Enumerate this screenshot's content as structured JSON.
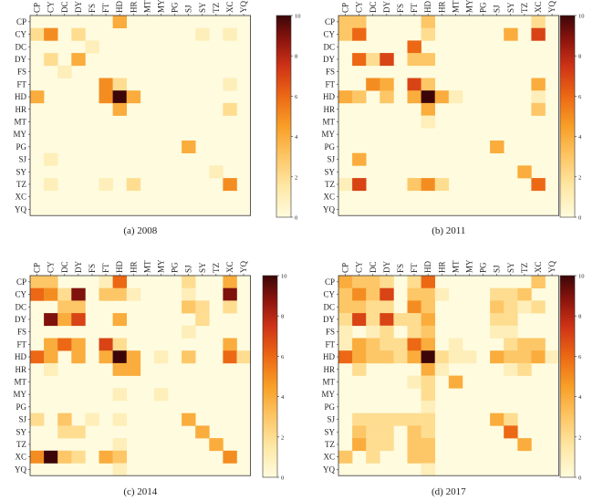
{
  "chart_data": [
    {
      "type": "heatmap",
      "caption": "(a) 2008",
      "labels": [
        "CP",
        "CY",
        "DC",
        "DY",
        "FS",
        "FT",
        "HD",
        "HR",
        "MT",
        "MY",
        "PG",
        "SJ",
        "SY",
        "TZ",
        "XC",
        "YQ"
      ],
      "colorbar": {
        "min": 0,
        "max": 10,
        "ticks": [
          0,
          2,
          4,
          6,
          8,
          10
        ]
      },
      "cells": [
        [
          0,
          6,
          4
        ],
        [
          1,
          0,
          2
        ],
        [
          1,
          1,
          5
        ],
        [
          1,
          3,
          2
        ],
        [
          1,
          12,
          1
        ],
        [
          1,
          14,
          1
        ],
        [
          2,
          4,
          1
        ],
        [
          3,
          1,
          2
        ],
        [
          3,
          3,
          4
        ],
        [
          4,
          2,
          1
        ],
        [
          5,
          5,
          5
        ],
        [
          5,
          6,
          2
        ],
        [
          5,
          14,
          1
        ],
        [
          6,
          0,
          4
        ],
        [
          6,
          5,
          5
        ],
        [
          6,
          6,
          10
        ],
        [
          6,
          7,
          4
        ],
        [
          7,
          6,
          4
        ],
        [
          7,
          14,
          2
        ],
        [
          10,
          11,
          4
        ],
        [
          11,
          1,
          1
        ],
        [
          12,
          13,
          1
        ],
        [
          13,
          1,
          1
        ],
        [
          13,
          5,
          1
        ],
        [
          13,
          7,
          2
        ],
        [
          13,
          14,
          5
        ]
      ]
    },
    {
      "type": "heatmap",
      "caption": "(b) 2011",
      "labels": [
        "CP",
        "CY",
        "DC",
        "DY",
        "FS",
        "FT",
        "HD",
        "HR",
        "MT",
        "MY",
        "PG",
        "SJ",
        "SY",
        "TZ",
        "XC",
        "YQ"
      ],
      "colorbar": {
        "min": 0,
        "max": 10,
        "ticks": [
          0,
          2,
          4,
          6,
          8,
          10
        ]
      },
      "cells": [
        [
          0,
          0,
          3
        ],
        [
          0,
          1,
          3
        ],
        [
          0,
          6,
          3
        ],
        [
          0,
          14,
          2
        ],
        [
          1,
          0,
          3
        ],
        [
          1,
          1,
          6
        ],
        [
          1,
          6,
          2
        ],
        [
          1,
          12,
          4
        ],
        [
          1,
          14,
          7
        ],
        [
          2,
          5,
          6
        ],
        [
          3,
          1,
          6
        ],
        [
          3,
          2,
          2
        ],
        [
          3,
          3,
          7
        ],
        [
          3,
          5,
          3
        ],
        [
          3,
          6,
          3
        ],
        [
          5,
          2,
          5
        ],
        [
          5,
          3,
          4
        ],
        [
          5,
          5,
          7
        ],
        [
          5,
          6,
          3
        ],
        [
          5,
          14,
          4
        ],
        [
          6,
          0,
          4
        ],
        [
          6,
          1,
          3
        ],
        [
          6,
          3,
          3
        ],
        [
          6,
          5,
          4
        ],
        [
          6,
          6,
          10
        ],
        [
          6,
          7,
          4
        ],
        [
          6,
          8,
          1
        ],
        [
          6,
          14,
          1
        ],
        [
          7,
          6,
          4
        ],
        [
          7,
          14,
          3
        ],
        [
          8,
          6,
          1
        ],
        [
          10,
          11,
          4
        ],
        [
          11,
          1,
          4
        ],
        [
          12,
          13,
          4
        ],
        [
          13,
          0,
          1
        ],
        [
          13,
          1,
          7
        ],
        [
          13,
          5,
          3
        ],
        [
          13,
          6,
          5
        ],
        [
          13,
          7,
          2
        ],
        [
          13,
          14,
          6
        ]
      ]
    },
    {
      "type": "heatmap",
      "caption": "(c) 2014",
      "labels": [
        "CP",
        "CY",
        "DC",
        "DY",
        "FS",
        "FT",
        "HD",
        "HR",
        "MT",
        "MY",
        "PG",
        "SJ",
        "SY",
        "TZ",
        "XC",
        "YQ"
      ],
      "colorbar": {
        "min": 0,
        "max": 10,
        "ticks": [
          0,
          2,
          4,
          6,
          8,
          10
        ]
      },
      "cells": [
        [
          0,
          0,
          3
        ],
        [
          0,
          1,
          3
        ],
        [
          0,
          5,
          1
        ],
        [
          0,
          6,
          6
        ],
        [
          0,
          11,
          2
        ],
        [
          0,
          14,
          4
        ],
        [
          1,
          0,
          6
        ],
        [
          1,
          1,
          5
        ],
        [
          1,
          2,
          2
        ],
        [
          1,
          3,
          9
        ],
        [
          1,
          5,
          3
        ],
        [
          1,
          6,
          3
        ],
        [
          1,
          7,
          1
        ],
        [
          1,
          11,
          1
        ],
        [
          1,
          14,
          9
        ],
        [
          2,
          2,
          3
        ],
        [
          2,
          3,
          3
        ],
        [
          2,
          11,
          3
        ],
        [
          2,
          12,
          2
        ],
        [
          2,
          14,
          2
        ],
        [
          3,
          1,
          9
        ],
        [
          3,
          2,
          4
        ],
        [
          3,
          3,
          7
        ],
        [
          3,
          6,
          4
        ],
        [
          3,
          12,
          2
        ],
        [
          4,
          11,
          1
        ],
        [
          5,
          1,
          4
        ],
        [
          5,
          2,
          6
        ],
        [
          5,
          3,
          4
        ],
        [
          5,
          5,
          7
        ],
        [
          5,
          6,
          2
        ],
        [
          5,
          14,
          4
        ],
        [
          6,
          0,
          6
        ],
        [
          6,
          1,
          4
        ],
        [
          6,
          3,
          4
        ],
        [
          6,
          5,
          4
        ],
        [
          6,
          6,
          10
        ],
        [
          6,
          7,
          4
        ],
        [
          6,
          9,
          1
        ],
        [
          6,
          11,
          3
        ],
        [
          6,
          14,
          6
        ],
        [
          6,
          15,
          2
        ],
        [
          7,
          1,
          1
        ],
        [
          7,
          6,
          4
        ],
        [
          7,
          7,
          4
        ],
        [
          9,
          6,
          1
        ],
        [
          9,
          9,
          1
        ],
        [
          11,
          0,
          2
        ],
        [
          11,
          2,
          3
        ],
        [
          11,
          4,
          1
        ],
        [
          11,
          6,
          1
        ],
        [
          11,
          11,
          4
        ],
        [
          12,
          2,
          2
        ],
        [
          12,
          3,
          2
        ],
        [
          12,
          12,
          4
        ],
        [
          13,
          6,
          1
        ],
        [
          13,
          13,
          4
        ],
        [
          14,
          0,
          5
        ],
        [
          14,
          1,
          10
        ],
        [
          14,
          2,
          3
        ],
        [
          14,
          3,
          2
        ],
        [
          14,
          5,
          4
        ],
        [
          14,
          6,
          3
        ],
        [
          14,
          14,
          5
        ],
        [
          15,
          6,
          1
        ]
      ]
    },
    {
      "type": "heatmap",
      "caption": "(d) 2017",
      "labels": [
        "CP",
        "CY",
        "DC",
        "DY",
        "FS",
        "FT",
        "HD",
        "HR",
        "MT",
        "MY",
        "PG",
        "SJ",
        "SY",
        "TZ",
        "XC",
        "YQ"
      ],
      "colorbar": {
        "min": 0,
        "max": 10,
        "ticks": [
          0,
          2,
          4,
          6,
          8,
          10
        ]
      },
      "cells": [
        [
          0,
          0,
          4
        ],
        [
          0,
          1,
          3
        ],
        [
          0,
          2,
          3
        ],
        [
          0,
          3,
          2
        ],
        [
          0,
          5,
          2
        ],
        [
          0,
          6,
          6
        ],
        [
          0,
          14,
          3
        ],
        [
          1,
          0,
          3
        ],
        [
          1,
          1,
          5
        ],
        [
          1,
          2,
          3
        ],
        [
          1,
          3,
          7
        ],
        [
          1,
          5,
          3
        ],
        [
          1,
          6,
          3
        ],
        [
          1,
          7,
          1
        ],
        [
          1,
          11,
          2
        ],
        [
          1,
          12,
          2
        ],
        [
          1,
          13,
          3
        ],
        [
          2,
          0,
          3
        ],
        [
          2,
          1,
          3
        ],
        [
          2,
          2,
          2
        ],
        [
          2,
          3,
          2
        ],
        [
          2,
          5,
          5
        ],
        [
          2,
          6,
          3
        ],
        [
          2,
          11,
          3
        ],
        [
          2,
          12,
          2
        ],
        [
          2,
          13,
          1
        ],
        [
          2,
          14,
          2
        ],
        [
          3,
          0,
          2
        ],
        [
          3,
          1,
          7
        ],
        [
          3,
          2,
          2
        ],
        [
          3,
          3,
          7
        ],
        [
          3,
          4,
          2
        ],
        [
          3,
          5,
          2
        ],
        [
          3,
          6,
          4
        ],
        [
          3,
          11,
          2
        ],
        [
          3,
          12,
          2
        ],
        [
          4,
          0,
          1
        ],
        [
          4,
          2,
          1
        ],
        [
          4,
          3,
          2
        ],
        [
          4,
          5,
          2
        ],
        [
          4,
          6,
          3
        ],
        [
          4,
          11,
          1
        ],
        [
          4,
          12,
          1
        ],
        [
          5,
          0,
          1
        ],
        [
          5,
          1,
          4
        ],
        [
          5,
          2,
          3
        ],
        [
          5,
          3,
          2
        ],
        [
          5,
          4,
          2
        ],
        [
          5,
          5,
          6
        ],
        [
          5,
          6,
          4
        ],
        [
          5,
          8,
          1
        ],
        [
          5,
          12,
          2
        ],
        [
          5,
          13,
          3
        ],
        [
          5,
          14,
          3
        ],
        [
          6,
          0,
          6
        ],
        [
          6,
          1,
          4
        ],
        [
          6,
          2,
          3
        ],
        [
          6,
          3,
          3
        ],
        [
          6,
          4,
          2
        ],
        [
          6,
          5,
          4
        ],
        [
          6,
          6,
          10
        ],
        [
          6,
          7,
          2
        ],
        [
          6,
          8,
          1
        ],
        [
          6,
          9,
          1
        ],
        [
          6,
          11,
          4
        ],
        [
          6,
          12,
          3
        ],
        [
          6,
          13,
          3
        ],
        [
          6,
          14,
          4
        ],
        [
          6,
          15,
          1
        ],
        [
          7,
          1,
          2
        ],
        [
          7,
          6,
          4
        ],
        [
          7,
          7,
          1
        ],
        [
          7,
          12,
          1
        ],
        [
          7,
          13,
          2
        ],
        [
          8,
          5,
          1
        ],
        [
          8,
          6,
          2
        ],
        [
          8,
          8,
          4
        ],
        [
          9,
          6,
          2
        ],
        [
          10,
          6,
          1
        ],
        [
          11,
          1,
          2
        ],
        [
          11,
          2,
          2
        ],
        [
          11,
          3,
          2
        ],
        [
          11,
          4,
          2
        ],
        [
          11,
          5,
          2
        ],
        [
          11,
          6,
          2
        ],
        [
          11,
          11,
          4
        ],
        [
          11,
          12,
          2
        ],
        [
          12,
          1,
          3
        ],
        [
          12,
          2,
          2
        ],
        [
          12,
          3,
          2
        ],
        [
          12,
          5,
          3
        ],
        [
          12,
          6,
          2
        ],
        [
          12,
          12,
          6
        ],
        [
          13,
          1,
          4
        ],
        [
          13,
          2,
          2
        ],
        [
          13,
          3,
          2
        ],
        [
          13,
          5,
          3
        ],
        [
          13,
          6,
          3
        ],
        [
          13,
          13,
          4
        ],
        [
          14,
          0,
          3
        ],
        [
          14,
          2,
          2
        ],
        [
          14,
          5,
          3
        ],
        [
          14,
          6,
          3
        ],
        [
          15,
          6,
          1
        ]
      ]
    }
  ]
}
